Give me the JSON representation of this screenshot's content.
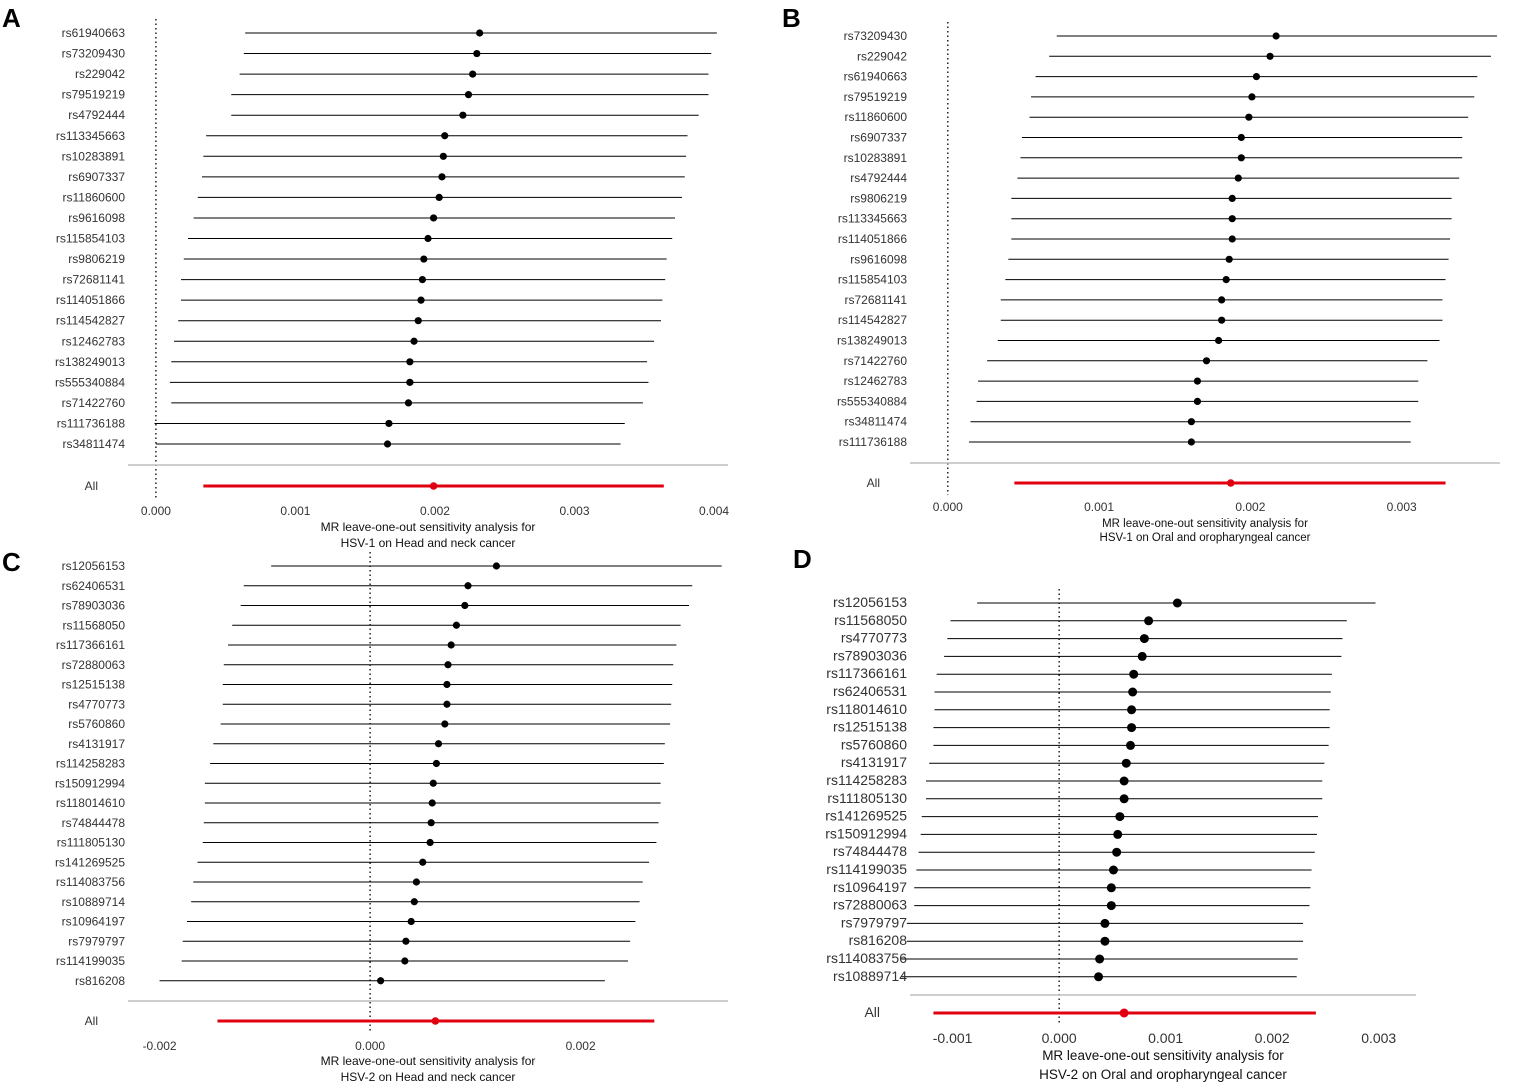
{
  "figure": {
    "colors": {
      "line": "#000000",
      "overall": "#e0000f",
      "separator": "#bdbdbd",
      "text": "#333333"
    }
  },
  "chart_data": [
    {
      "type": "forest",
      "label": "A",
      "title": "MR leave-one-out sensitivity analysis for",
      "title2": "HSV-1 on Head and neck cancer",
      "xlim": [
        -0.0002,
        0.0041
      ],
      "xticks": [
        0,
        0.001,
        0.002,
        0.003,
        0.004
      ],
      "xtick_labels": [
        "0.000",
        "0.001",
        "0.002",
        "0.003",
        "0.004"
      ],
      "reference_line": 0,
      "snps": [
        {
          "name": "rs61940663",
          "est": 0.00232,
          "lo": 0.00064,
          "hi": 0.00402
        },
        {
          "name": "rs73209430",
          "est": 0.0023,
          "lo": 0.00063,
          "hi": 0.00398
        },
        {
          "name": "rs229042",
          "est": 0.00227,
          "lo": 0.0006,
          "hi": 0.00396
        },
        {
          "name": "rs79519219",
          "est": 0.00224,
          "lo": 0.00054,
          "hi": 0.00396
        },
        {
          "name": "rs4792444",
          "est": 0.0022,
          "lo": 0.00054,
          "hi": 0.00389
        },
        {
          "name": "rs113345663",
          "est": 0.00207,
          "lo": 0.00036,
          "hi": 0.00381
        },
        {
          "name": "rs10283891",
          "est": 0.00206,
          "lo": 0.00034,
          "hi": 0.0038
        },
        {
          "name": "rs6907337",
          "est": 0.00205,
          "lo": 0.00033,
          "hi": 0.00379
        },
        {
          "name": "rs11860600",
          "est": 0.00203,
          "lo": 0.0003,
          "hi": 0.00377
        },
        {
          "name": "rs9616098",
          "est": 0.00199,
          "lo": 0.00027,
          "hi": 0.00372
        },
        {
          "name": "rs115854103",
          "est": 0.00195,
          "lo": 0.00023,
          "hi": 0.0037
        },
        {
          "name": "rs9806219",
          "est": 0.00192,
          "lo": 0.0002,
          "hi": 0.00366
        },
        {
          "name": "rs72681141",
          "est": 0.00191,
          "lo": 0.00018,
          "hi": 0.00365
        },
        {
          "name": "rs114051866",
          "est": 0.0019,
          "lo": 0.00018,
          "hi": 0.00363
        },
        {
          "name": "rs114542827",
          "est": 0.00188,
          "lo": 0.00016,
          "hi": 0.00362
        },
        {
          "name": "rs12462783",
          "est": 0.00185,
          "lo": 0.00013,
          "hi": 0.00357
        },
        {
          "name": "rs138249013",
          "est": 0.00182,
          "lo": 0.00011,
          "hi": 0.00352
        },
        {
          "name": "rs555340884",
          "est": 0.00182,
          "lo": 0.0001,
          "hi": 0.00353
        },
        {
          "name": "rs71422760",
          "est": 0.00181,
          "lo": 0.00011,
          "hi": 0.00349
        },
        {
          "name": "rs111736188",
          "est": 0.00167,
          "lo": -1e-05,
          "hi": 0.00336
        },
        {
          "name": "rs34811474",
          "est": 0.00166,
          "lo": 0.0,
          "hi": 0.00333
        }
      ],
      "overall": {
        "name": "All",
        "est": 0.00199,
        "lo": 0.00034,
        "hi": 0.00364
      }
    },
    {
      "type": "forest",
      "label": "B",
      "title": "MR leave-one-out sensitivity analysis for",
      "title2": "HSV-1 on Oral and oropharyngeal cancer",
      "xlim": [
        -0.00025,
        0.00365
      ],
      "xticks": [
        0,
        0.001,
        0.002,
        0.003
      ],
      "xtick_labels": [
        "0.000",
        "0.001",
        "0.002",
        "0.003"
      ],
      "reference_line": 0,
      "snps": [
        {
          "name": "rs73209430",
          "est": 0.00217,
          "lo": 0.00072,
          "hi": 0.00363
        },
        {
          "name": "rs229042",
          "est": 0.00213,
          "lo": 0.00067,
          "hi": 0.00359
        },
        {
          "name": "rs61940663",
          "est": 0.00204,
          "lo": 0.00058,
          "hi": 0.0035
        },
        {
          "name": "rs79519219",
          "est": 0.00201,
          "lo": 0.00055,
          "hi": 0.00348
        },
        {
          "name": "rs11860600",
          "est": 0.00199,
          "lo": 0.00054,
          "hi": 0.00344
        },
        {
          "name": "rs6907337",
          "est": 0.00194,
          "lo": 0.00049,
          "hi": 0.0034
        },
        {
          "name": "rs10283891",
          "est": 0.00194,
          "lo": 0.00048,
          "hi": 0.0034
        },
        {
          "name": "rs4792444",
          "est": 0.00192,
          "lo": 0.00046,
          "hi": 0.00338
        },
        {
          "name": "rs9806219",
          "est": 0.00188,
          "lo": 0.00042,
          "hi": 0.00333
        },
        {
          "name": "rs113345663",
          "est": 0.00188,
          "lo": 0.00042,
          "hi": 0.00333
        },
        {
          "name": "rs114051866",
          "est": 0.00188,
          "lo": 0.00042,
          "hi": 0.00332
        },
        {
          "name": "rs9616098",
          "est": 0.00186,
          "lo": 0.0004,
          "hi": 0.00331
        },
        {
          "name": "rs115854103",
          "est": 0.00184,
          "lo": 0.00038,
          "hi": 0.00329
        },
        {
          "name": "rs72681141",
          "est": 0.00181,
          "lo": 0.00035,
          "hi": 0.00327
        },
        {
          "name": "rs114542827",
          "est": 0.00181,
          "lo": 0.00035,
          "hi": 0.00327
        },
        {
          "name": "rs138249013",
          "est": 0.00179,
          "lo": 0.00033,
          "hi": 0.00325
        },
        {
          "name": "rs71422760",
          "est": 0.00171,
          "lo": 0.00026,
          "hi": 0.00317
        },
        {
          "name": "rs12462783",
          "est": 0.00165,
          "lo": 0.0002,
          "hi": 0.00311
        },
        {
          "name": "rs555340884",
          "est": 0.00165,
          "lo": 0.00019,
          "hi": 0.00311
        },
        {
          "name": "rs34811474",
          "est": 0.00161,
          "lo": 0.00015,
          "hi": 0.00306
        },
        {
          "name": "rs111736188",
          "est": 0.00161,
          "lo": 0.00014,
          "hi": 0.00306
        }
      ],
      "overall": {
        "name": "All",
        "est": 0.00187,
        "lo": 0.00044,
        "hi": 0.00329
      }
    },
    {
      "type": "forest",
      "label": "C",
      "title": "MR leave-one-out sensitivity analysis for",
      "title2": "HSV-2 on Head and neck cancer",
      "xlim": [
        -0.0023,
        0.0034
      ],
      "xticks": [
        -0.002,
        0,
        0.002
      ],
      "xtick_labels": [
        "-0.002",
        "0.000",
        "0.002"
      ],
      "reference_line": 0,
      "snps": [
        {
          "name": "rs12056153",
          "est": 0.0012,
          "lo": -0.00094,
          "hi": 0.00334
        },
        {
          "name": "rs62406531",
          "est": 0.00093,
          "lo": -0.0012,
          "hi": 0.00306
        },
        {
          "name": "rs78903036",
          "est": 0.0009,
          "lo": -0.00123,
          "hi": 0.00303
        },
        {
          "name": "rs11568050",
          "est": 0.00082,
          "lo": -0.00131,
          "hi": 0.00295
        },
        {
          "name": "rs117366161",
          "est": 0.00077,
          "lo": -0.00135,
          "hi": 0.00291
        },
        {
          "name": "rs72880063",
          "est": 0.00074,
          "lo": -0.00139,
          "hi": 0.00288
        },
        {
          "name": "rs12515138",
          "est": 0.00073,
          "lo": -0.0014,
          "hi": 0.00287
        },
        {
          "name": "rs4770773",
          "est": 0.00073,
          "lo": -0.0014,
          "hi": 0.00286
        },
        {
          "name": "rs5760860",
          "est": 0.00071,
          "lo": -0.00142,
          "hi": 0.00285
        },
        {
          "name": "rs4131917",
          "est": 0.00065,
          "lo": -0.00149,
          "hi": 0.0028
        },
        {
          "name": "rs114258283",
          "est": 0.00063,
          "lo": -0.00152,
          "hi": 0.00279
        },
        {
          "name": "rs150912994",
          "est": 0.0006,
          "lo": -0.00157,
          "hi": 0.00276
        },
        {
          "name": "rs118014610",
          "est": 0.00059,
          "lo": -0.00157,
          "hi": 0.00276
        },
        {
          "name": "rs74844478",
          "est": 0.00058,
          "lo": -0.00158,
          "hi": 0.00274
        },
        {
          "name": "rs111805130",
          "est": 0.00057,
          "lo": -0.00159,
          "hi": 0.00272
        },
        {
          "name": "rs141269525",
          "est": 0.0005,
          "lo": -0.00164,
          "hi": 0.00265
        },
        {
          "name": "rs114083756",
          "est": 0.00044,
          "lo": -0.00168,
          "hi": 0.00259
        },
        {
          "name": "rs10889714",
          "est": 0.00042,
          "lo": -0.0017,
          "hi": 0.00256
        },
        {
          "name": "rs10964197",
          "est": 0.00039,
          "lo": -0.00174,
          "hi": 0.00252
        },
        {
          "name": "rs7979797",
          "est": 0.00034,
          "lo": -0.00178,
          "hi": 0.00247
        },
        {
          "name": "rs114199035",
          "est": 0.00033,
          "lo": -0.00179,
          "hi": 0.00245
        },
        {
          "name": "rs816208",
          "est": 0.0001,
          "lo": -0.002,
          "hi": 0.00223
        }
      ],
      "overall": {
        "name": "All",
        "est": 0.00062,
        "lo": -0.00145,
        "hi": 0.0027
      }
    },
    {
      "type": "forest",
      "label": "D",
      "title": "MR leave-one-out sensitivity analysis for",
      "title2": "HSV-2 on Oral and oropharyngeal cancer",
      "xlim": [
        -0.0014,
        0.00335
      ],
      "xticks": [
        -0.001,
        0,
        0.001,
        0.002,
        0.003
      ],
      "xtick_labels": [
        "-0.001",
        "0.000",
        "0.001",
        "0.002",
        "0.003"
      ],
      "reference_line": 0,
      "snps": [
        {
          "name": "rs12056153",
          "est": 0.00111,
          "lo": -0.00077,
          "hi": 0.00297
        },
        {
          "name": "rs11568050",
          "est": 0.00084,
          "lo": -0.00102,
          "hi": 0.0027
        },
        {
          "name": "rs4770773",
          "est": 0.0008,
          "lo": -0.00105,
          "hi": 0.00266
        },
        {
          "name": "rs78903036",
          "est": 0.00078,
          "lo": -0.00108,
          "hi": 0.00265
        },
        {
          "name": "rs117366161",
          "est": 0.0007,
          "lo": -0.00115,
          "hi": 0.00256
        },
        {
          "name": "rs62406531",
          "est": 0.00069,
          "lo": -0.00117,
          "hi": 0.00255
        },
        {
          "name": "rs118014610",
          "est": 0.00068,
          "lo": -0.00117,
          "hi": 0.00254
        },
        {
          "name": "rs12515138",
          "est": 0.00068,
          "lo": -0.00118,
          "hi": 0.00254
        },
        {
          "name": "rs5760860",
          "est": 0.00067,
          "lo": -0.00118,
          "hi": 0.00253
        },
        {
          "name": "rs4131917",
          "est": 0.00063,
          "lo": -0.00122,
          "hi": 0.00249
        },
        {
          "name": "rs114258283",
          "est": 0.00061,
          "lo": -0.00125,
          "hi": 0.00247
        },
        {
          "name": "rs111805130",
          "est": 0.00061,
          "lo": -0.00125,
          "hi": 0.00247
        },
        {
          "name": "rs141269525",
          "est": 0.00057,
          "lo": -0.00129,
          "hi": 0.00243
        },
        {
          "name": "rs150912994",
          "est": 0.00055,
          "lo": -0.0013,
          "hi": 0.00242
        },
        {
          "name": "rs74844478",
          "est": 0.00054,
          "lo": -0.00132,
          "hi": 0.0024
        },
        {
          "name": "rs114199035",
          "est": 0.00051,
          "lo": -0.00134,
          "hi": 0.00237
        },
        {
          "name": "rs10964197",
          "est": 0.00049,
          "lo": -0.00136,
          "hi": 0.00236
        },
        {
          "name": "rs72880063",
          "est": 0.00049,
          "lo": -0.00136,
          "hi": 0.00235
        },
        {
          "name": "rs7979797",
          "est": 0.00043,
          "lo": -0.00143,
          "hi": 0.00229
        },
        {
          "name": "rs816208",
          "est": 0.00043,
          "lo": -0.00143,
          "hi": 0.00229
        },
        {
          "name": "rs114083756",
          "est": 0.00038,
          "lo": -0.00148,
          "hi": 0.00224
        },
        {
          "name": "rs10889714",
          "est": 0.00037,
          "lo": -0.00148,
          "hi": 0.00223
        }
      ],
      "overall": {
        "name": "All",
        "est": 0.00061,
        "lo": -0.00118,
        "hi": 0.00241
      }
    }
  ]
}
